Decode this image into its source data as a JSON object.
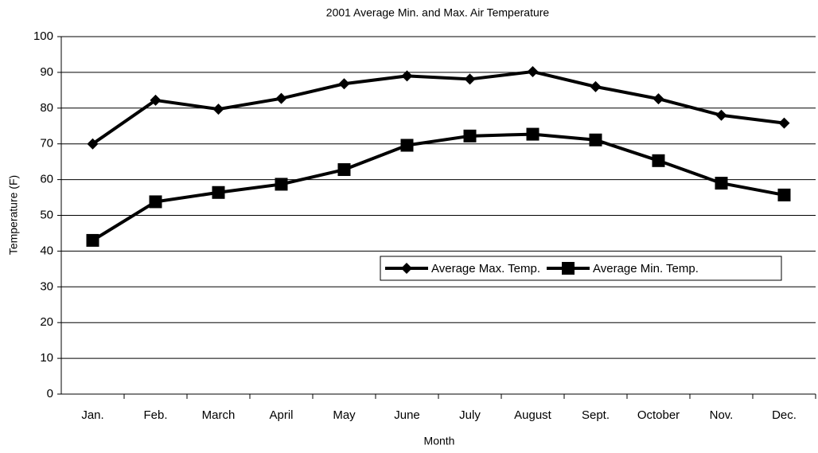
{
  "chart_data": {
    "type": "line",
    "title": "2001 Average Min. and Max.  Air Temperature",
    "xlabel": "Month",
    "ylabel": "Temperature (F)",
    "categories": [
      "Jan.",
      "Feb.",
      "March",
      "April",
      "May",
      "June",
      "July",
      "August",
      "Sept.",
      "October",
      "Nov.",
      "Dec."
    ],
    "series": [
      {
        "name": "Average Max. Temp.",
        "color": "#000000",
        "marker": "diamond",
        "values": [
          70,
          82.2,
          79.7,
          82.7,
          86.8,
          89,
          88.1,
          90.2,
          86,
          82.6,
          78,
          75.8
        ]
      },
      {
        "name": "Average Min. Temp.",
        "color": "#000000",
        "marker": "square",
        "values": [
          43,
          53.8,
          56.4,
          58.7,
          62.8,
          69.6,
          72.2,
          72.7,
          71.1,
          65.3,
          59,
          55.7
        ]
      }
    ],
    "ylim": [
      0,
      100
    ],
    "yticks": [
      0,
      10,
      20,
      30,
      40,
      50,
      60,
      70,
      80,
      90,
      100
    ],
    "grid": true
  }
}
